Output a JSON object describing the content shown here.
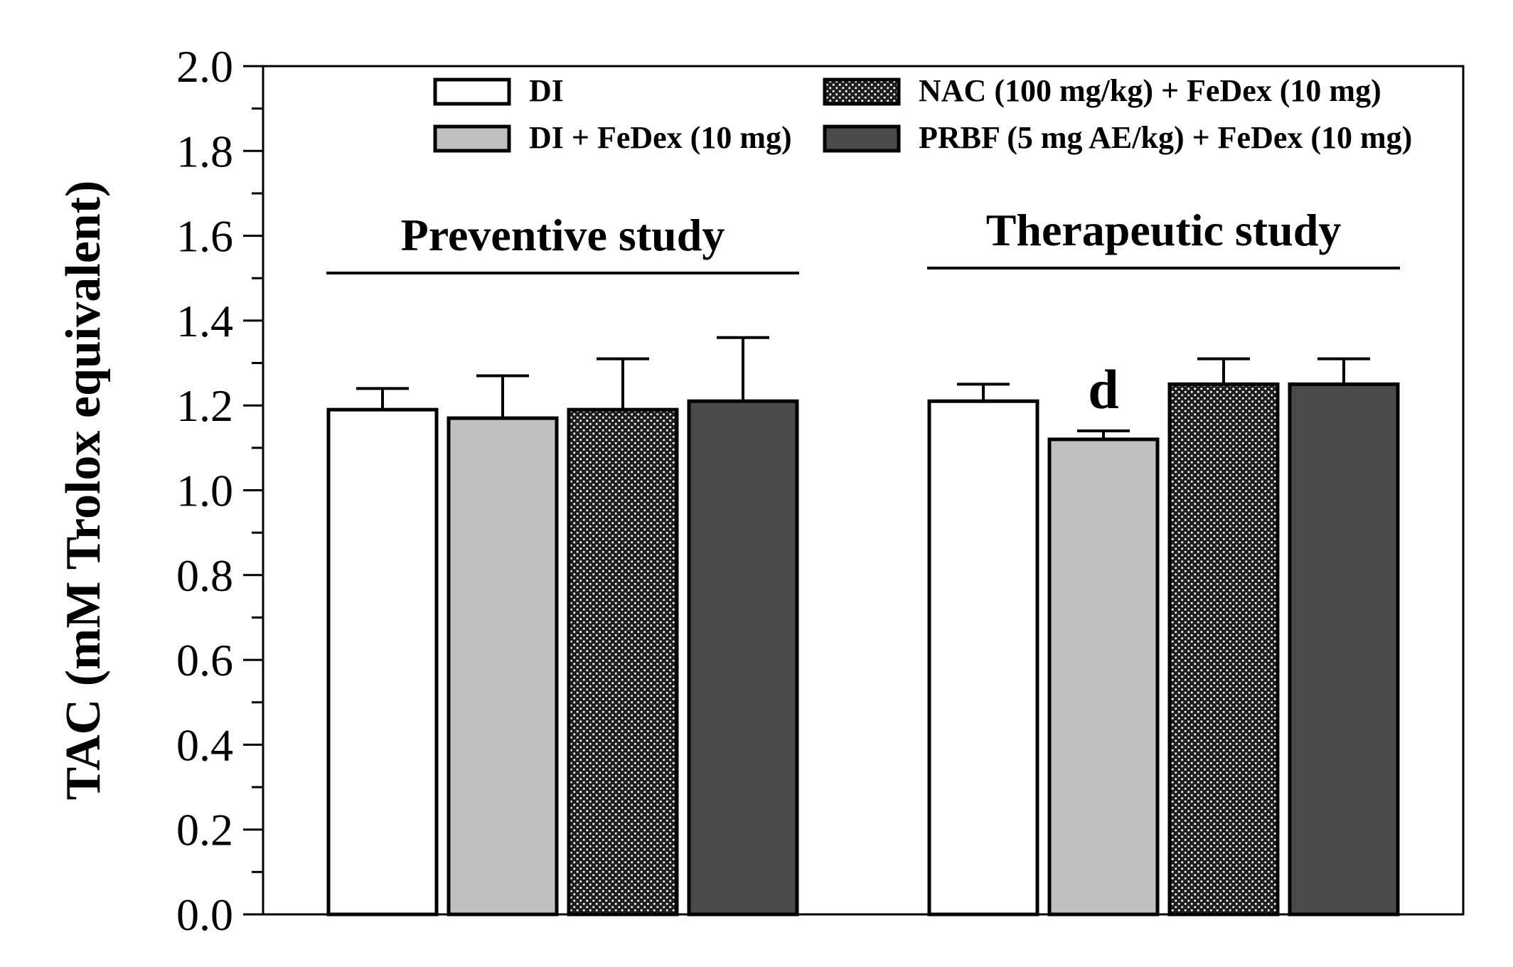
{
  "chart_data": {
    "type": "bar",
    "ylabel": "TAC (mM Trolox equivalent)",
    "ylim": [
      0,
      2.0
    ],
    "y_ticks": [
      "0.0",
      "0.2",
      "0.4",
      "0.6",
      "0.8",
      "1.0",
      "1.2",
      "1.4",
      "1.6",
      "1.8",
      "2.0"
    ],
    "groups": [
      {
        "label": "Preventive study",
        "key": "preventive"
      },
      {
        "label": "Therapeutic study",
        "key": "therapeutic"
      }
    ],
    "series": [
      {
        "name": "DI",
        "fill": "#ffffff",
        "pattern": "none",
        "values": [
          1.19,
          1.21
        ],
        "errors": [
          0.05,
          0.04
        ],
        "annotations": [
          "",
          ""
        ]
      },
      {
        "name": "DI + FeDex (10 mg)",
        "fill": "#c0c0c0",
        "pattern": "none",
        "values": [
          1.17,
          1.12
        ],
        "errors": [
          0.1,
          0.02
        ],
        "annotations": [
          "",
          "d"
        ]
      },
      {
        "name": "NAC (100 mg/kg) + FeDex (10 mg)",
        "fill": "#1e1e1e",
        "pattern": "dots",
        "values": [
          1.19,
          1.25
        ],
        "errors": [
          0.12,
          0.06
        ],
        "annotations": [
          "",
          ""
        ]
      },
      {
        "name": "PRBF (5 mg AE/kg) + FeDex (10 mg)",
        "fill": "#4a4a4a",
        "pattern": "none",
        "values": [
          1.21,
          1.25
        ],
        "errors": [
          0.15,
          0.06
        ],
        "annotations": [
          "",
          ""
        ]
      }
    ],
    "legend_position": "top"
  }
}
